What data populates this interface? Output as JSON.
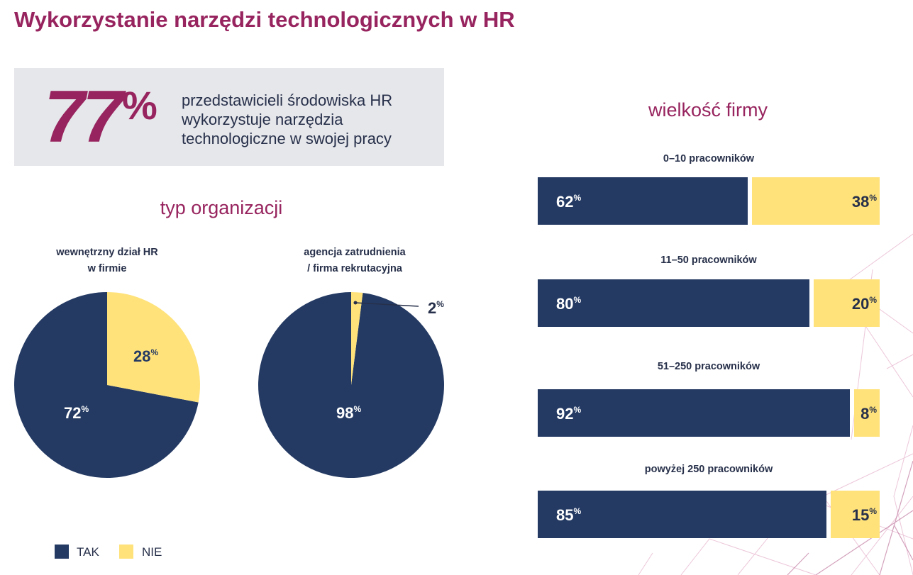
{
  "title": "Wykorzystanie narzędzi technologicznych w HR",
  "headline": {
    "value": "77",
    "unit": "%",
    "text": "przedstawicieli środowiska HR wykorzystuje narzędzia technologiczne w swojej pracy"
  },
  "colors": {
    "tak": "#243a63",
    "nie": "#ffe27a",
    "accent": "#97245e",
    "box": "#e6e7eb"
  },
  "legend": [
    {
      "label": "TAK",
      "color": "#243a63"
    },
    {
      "label": "NIE",
      "color": "#ffe27a"
    }
  ],
  "chart_data": [
    {
      "type": "pie",
      "group_title": "typ organizacji",
      "title": "wewnętrzny dział HR w firmie",
      "title_lines": [
        "wewnętrzny dział HR",
        "w firmie"
      ],
      "slices": [
        {
          "name": "TAK",
          "value": 72,
          "label": "72"
        },
        {
          "name": "NIE",
          "value": 28,
          "label": "28"
        }
      ]
    },
    {
      "type": "pie",
      "group_title": "typ organizacji",
      "title": "agencja zatrudnienia / firma rekrutacyjna",
      "title_lines": [
        "agencja zatrudnienia",
        "/ firma rekrutacyjna"
      ],
      "slices": [
        {
          "name": "TAK",
          "value": 98,
          "label": "98"
        },
        {
          "name": "NIE",
          "value": 2,
          "label": "2"
        }
      ]
    },
    {
      "type": "bar",
      "orientation": "horizontal-stacked-100",
      "title": "wielkość firmy",
      "categories": [
        "0–10 pracowników",
        "11–50 pracowników",
        "51–250 pracowników",
        "powyżej 250 pracowników"
      ],
      "series": [
        {
          "name": "TAK",
          "values": [
            62,
            80,
            92,
            85
          ]
        },
        {
          "name": "NIE",
          "values": [
            38,
            20,
            8,
            15
          ]
        }
      ],
      "unit": "%"
    }
  ]
}
